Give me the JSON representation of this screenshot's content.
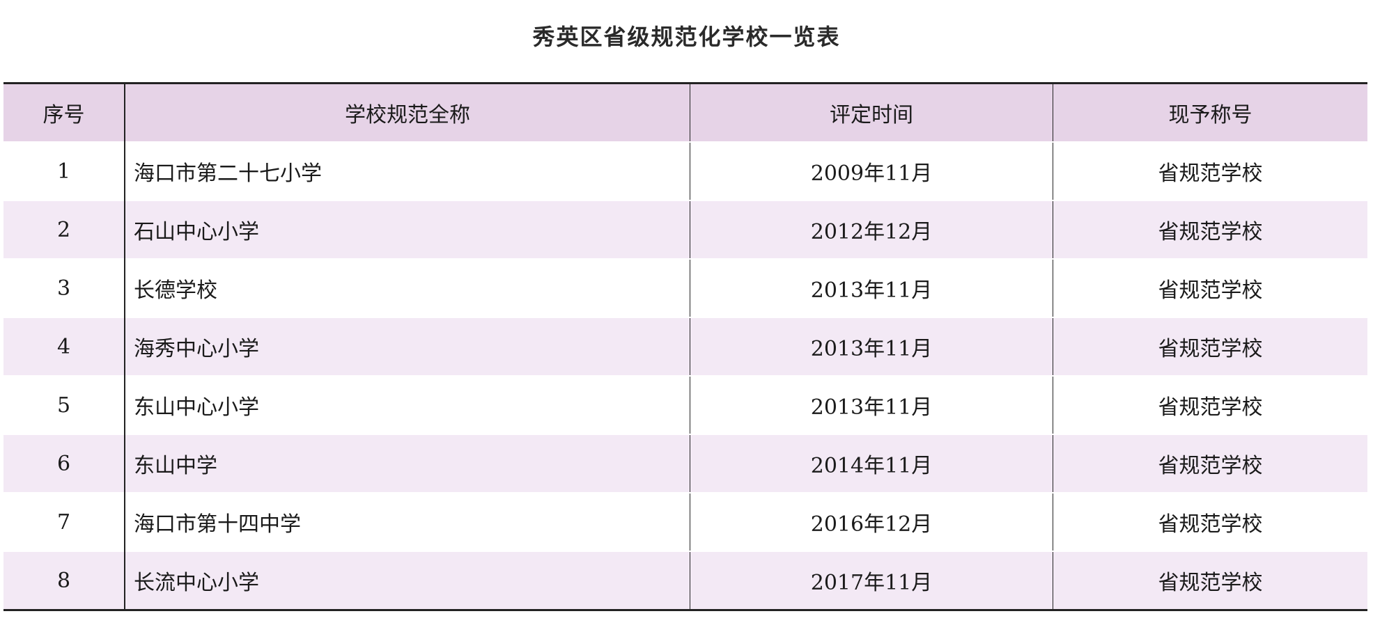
{
  "title": "秀英区省级规范化学校一览表",
  "table": {
    "headers": [
      "序号",
      "学校规范全称",
      "评定时间",
      "现予称号"
    ],
    "rows": [
      [
        "1",
        "海口市第二十七小学",
        "2009年11月",
        "省规范学校"
      ],
      [
        "2",
        "石山中心小学",
        "2012年12月",
        "省规范学校"
      ],
      [
        "3",
        "长德学校",
        "2013年11月",
        "省规范学校"
      ],
      [
        "4",
        "海秀中心小学",
        "2013年11月",
        "省规范学校"
      ],
      [
        "5",
        "东山中心小学",
        "2013年11月",
        "省规范学校"
      ],
      [
        "6",
        "东山中学",
        "2014年11月",
        "省规范学校"
      ],
      [
        "7",
        "海口市第十四中学",
        "2016年12月",
        "省规范学校"
      ],
      [
        "8",
        "长流中心小学",
        "2017年11月",
        "省规范学校"
      ]
    ]
  },
  "colors": {
    "header_bg": "#e6d3e7",
    "stripe_bg": "#f3e9f5"
  }
}
